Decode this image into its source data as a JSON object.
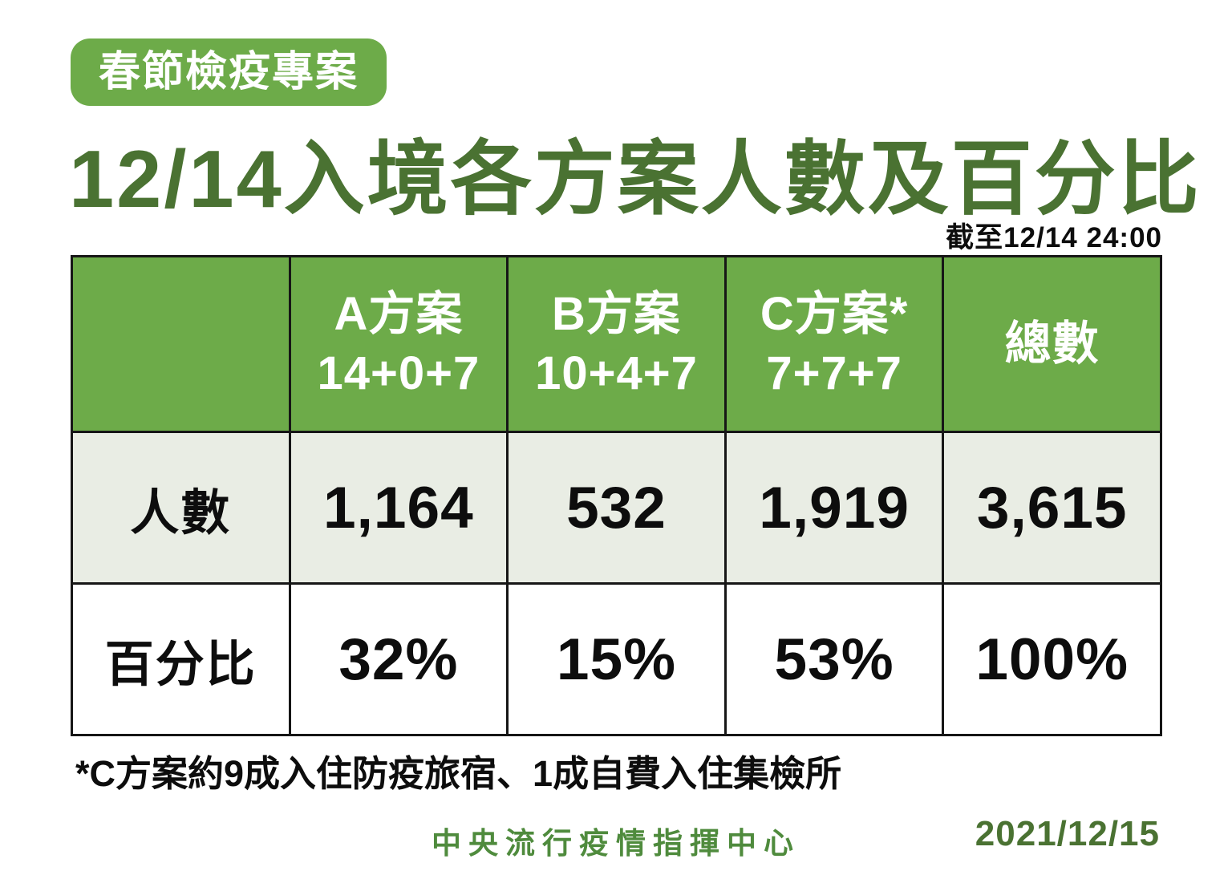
{
  "page": {
    "badge": "春節檢疫專案",
    "title": "12/14入境各方案人數及百分比",
    "as_of": "截至12/14 24:00",
    "footnote": "*C方案約9成入住防疫旅宿、1成自費入住集檢所",
    "footer_org": "中央流行疫情指揮中心",
    "footer_date": "2021/12/15"
  },
  "colors": {
    "accent_green": "#6dab49",
    "title_green": "#4a7232",
    "footer_green": "#4f8b3d",
    "row_alt_bg": "#e9ede4",
    "row_bg": "#ffffff",
    "border": "#161616",
    "text": "#0d0d0d"
  },
  "table": {
    "header": [
      {
        "line1": "",
        "line2": ""
      },
      {
        "line1": "A方案",
        "line2": "14+0+7"
      },
      {
        "line1": "B方案",
        "line2": "10+4+7"
      },
      {
        "line1": "C方案*",
        "line2": "7+7+7"
      },
      {
        "line1": "總數",
        "line2": ""
      }
    ]
  },
  "chart_data": {
    "type": "table",
    "title": "12/14入境各方案人數及百分比",
    "as_of": "截至12/14 24:00",
    "columns": [
      "",
      "A方案 14+0+7",
      "B方案 10+4+7",
      "C方案* 7+7+7",
      "總數"
    ],
    "rows": [
      {
        "label": "人數",
        "values": [
          "1,164",
          "532",
          "1,919",
          "3,615"
        ]
      },
      {
        "label": "百分比",
        "values": [
          "32%",
          "15%",
          "53%",
          "100%"
        ]
      }
    ],
    "numeric": {
      "people": [
        1164,
        532,
        1919,
        3615
      ],
      "percent": [
        32,
        15,
        53,
        100
      ]
    }
  }
}
